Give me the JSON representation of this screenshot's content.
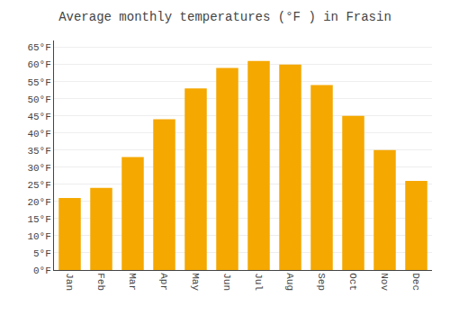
{
  "chart_data": {
    "type": "bar",
    "title": "Average monthly temperatures (°F ) in Frasin",
    "categories": [
      "Jan",
      "Feb",
      "Mar",
      "Apr",
      "May",
      "Jun",
      "Jul",
      "Aug",
      "Sep",
      "Oct",
      "Nov",
      "Dec"
    ],
    "values": [
      21,
      24,
      33,
      44,
      53,
      59,
      61,
      60,
      54,
      45,
      35,
      26
    ],
    "color": "#F5A800",
    "ylim": [
      0,
      67
    ],
    "yticks": [
      {
        "value": 0,
        "label": "0°F"
      },
      {
        "value": 5,
        "label": "5°F"
      },
      {
        "value": 10,
        "label": "10°F"
      },
      {
        "value": 15,
        "label": "15°F"
      },
      {
        "value": 20,
        "label": "20°F"
      },
      {
        "value": 25,
        "label": "25°F"
      },
      {
        "value": 30,
        "label": "30°F"
      },
      {
        "value": 35,
        "label": "35°F"
      },
      {
        "value": 40,
        "label": "40°F"
      },
      {
        "value": 45,
        "label": "45°F"
      },
      {
        "value": 50,
        "label": "50°F"
      },
      {
        "value": 55,
        "label": "55°F"
      },
      {
        "value": 60,
        "label": "60°F"
      },
      {
        "value": 65,
        "label": "65°F"
      }
    ],
    "grid": true
  }
}
